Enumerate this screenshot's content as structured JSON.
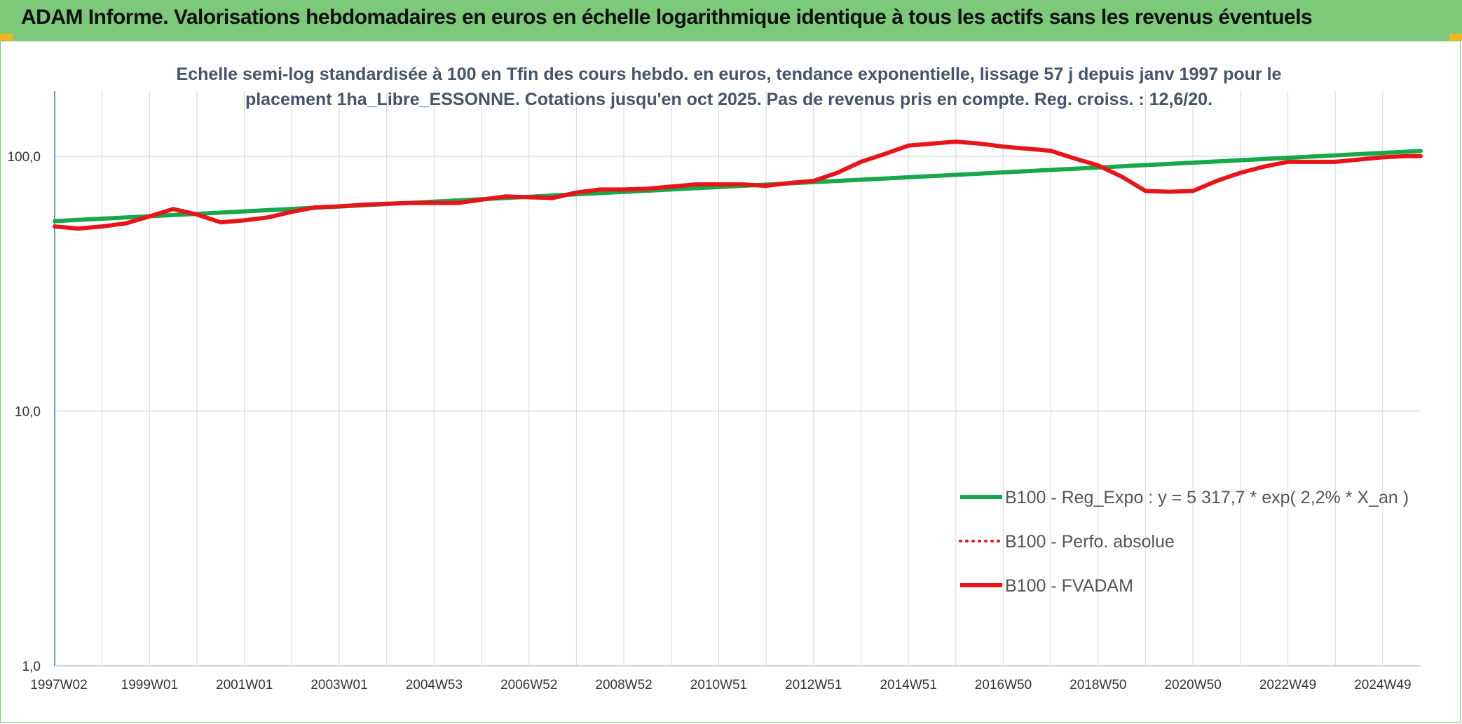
{
  "header": {
    "title": "ADAM Informe. Valorisations hebdomadaires en euros en échelle logarithmique identique à tous les actifs sans les revenus éventuels"
  },
  "colors": {
    "header_bg": "#7dc97a",
    "trend": "#16a84a",
    "fvadam": "#e8141a",
    "perfo": "#e8141a",
    "grid": "#d9dde3"
  },
  "chart_data": {
    "type": "line",
    "title": "",
    "subtitle_lines": [
      "Echelle semi-log standardisée à 100 en Tfin des cours hebdo. en euros, tendance exponentielle, lissage 57 j depuis janv 1997 pour le",
      "placement 1ha_Libre_ESSONNE. Cotations jusqu'en oct 2025. Pas de revenus pris en compte. Reg. croiss. : 12,6/20."
    ],
    "y_scale": "log",
    "ylim": [
      1,
      180
    ],
    "y_ticks": [
      {
        "value": 1,
        "label": "1,0"
      },
      {
        "value": 10,
        "label": "10,0"
      },
      {
        "value": 100,
        "label": "100,0"
      }
    ],
    "x_range": [
      1997.0,
      2025.8
    ],
    "x_ticks": [
      {
        "x": 1997.0,
        "label": "1997W02"
      },
      {
        "x": 1999.0,
        "label": "1999W01"
      },
      {
        "x": 2001.0,
        "label": "2001W01"
      },
      {
        "x": 2003.0,
        "label": "2003W01"
      },
      {
        "x": 2005.0,
        "label": "2004W53"
      },
      {
        "x": 2007.0,
        "label": "2006W52"
      },
      {
        "x": 2009.0,
        "label": "2008W52"
      },
      {
        "x": 2011.0,
        "label": "2010W51"
      },
      {
        "x": 2013.0,
        "label": "2012W51"
      },
      {
        "x": 2015.0,
        "label": "2014W51"
      },
      {
        "x": 2017.0,
        "label": "2016W50"
      },
      {
        "x": 2019.0,
        "label": "2018W50"
      },
      {
        "x": 2021.0,
        "label": "2020W50"
      },
      {
        "x": 2023.0,
        "label": "2022W49"
      },
      {
        "x": 2025.0,
        "label": "2024W49"
      }
    ],
    "x_minor_step": 1,
    "grid": true,
    "legend_position": "bottom-right",
    "series": [
      {
        "name": "B100 - Reg_Expo : y = 5 317,7 * exp( 2,2% *  X_an )",
        "style": "solid-green",
        "x": [
          1997.0,
          2025.8
        ],
        "values": [
          55.6,
          104.8
        ]
      },
      {
        "name": "B100 - Perfo. absolue",
        "style": "dotted-red",
        "x": [],
        "values": []
      },
      {
        "name": "B100 - FVADAM",
        "style": "solid-red",
        "x": [
          1997.0,
          1997.5,
          1998.0,
          1998.5,
          1999.0,
          1999.5,
          2000.0,
          2000.5,
          2001.0,
          2001.5,
          2002.0,
          2002.5,
          2003.0,
          2003.5,
          2004.0,
          2004.5,
          2005.0,
          2005.5,
          2006.0,
          2006.5,
          2007.0,
          2007.5,
          2008.0,
          2008.5,
          2009.0,
          2009.5,
          2010.0,
          2010.5,
          2011.0,
          2011.5,
          2012.0,
          2012.5,
          2013.0,
          2013.5,
          2014.0,
          2014.5,
          2015.0,
          2015.5,
          2016.0,
          2016.5,
          2017.0,
          2017.5,
          2018.0,
          2018.5,
          2019.0,
          2019.5,
          2020.0,
          2020.5,
          2021.0,
          2021.5,
          2022.0,
          2022.5,
          2023.0,
          2023.5,
          2024.0,
          2024.5,
          2025.0,
          2025.5,
          2025.8
        ],
        "values": [
          53.0,
          52.0,
          53.0,
          54.5,
          58.0,
          62.0,
          59.0,
          55.0,
          56.0,
          57.5,
          60.5,
          63.0,
          63.5,
          64.5,
          65.0,
          65.5,
          65.5,
          65.5,
          67.5,
          69.5,
          69.0,
          68.5,
          72.0,
          74.0,
          74.0,
          74.5,
          76.0,
          77.5,
          77.5,
          77.5,
          76.5,
          78.5,
          80.0,
          86.0,
          95.0,
          102.0,
          110.0,
          112.0,
          114.0,
          112.0,
          109.0,
          107.0,
          105.0,
          98.0,
          92.0,
          83.0,
          73.0,
          72.5,
          73.0,
          80.0,
          86.0,
          91.0,
          95.0,
          95.0,
          95.0,
          97.0,
          99.0,
          100.0,
          100.0
        ]
      }
    ]
  }
}
